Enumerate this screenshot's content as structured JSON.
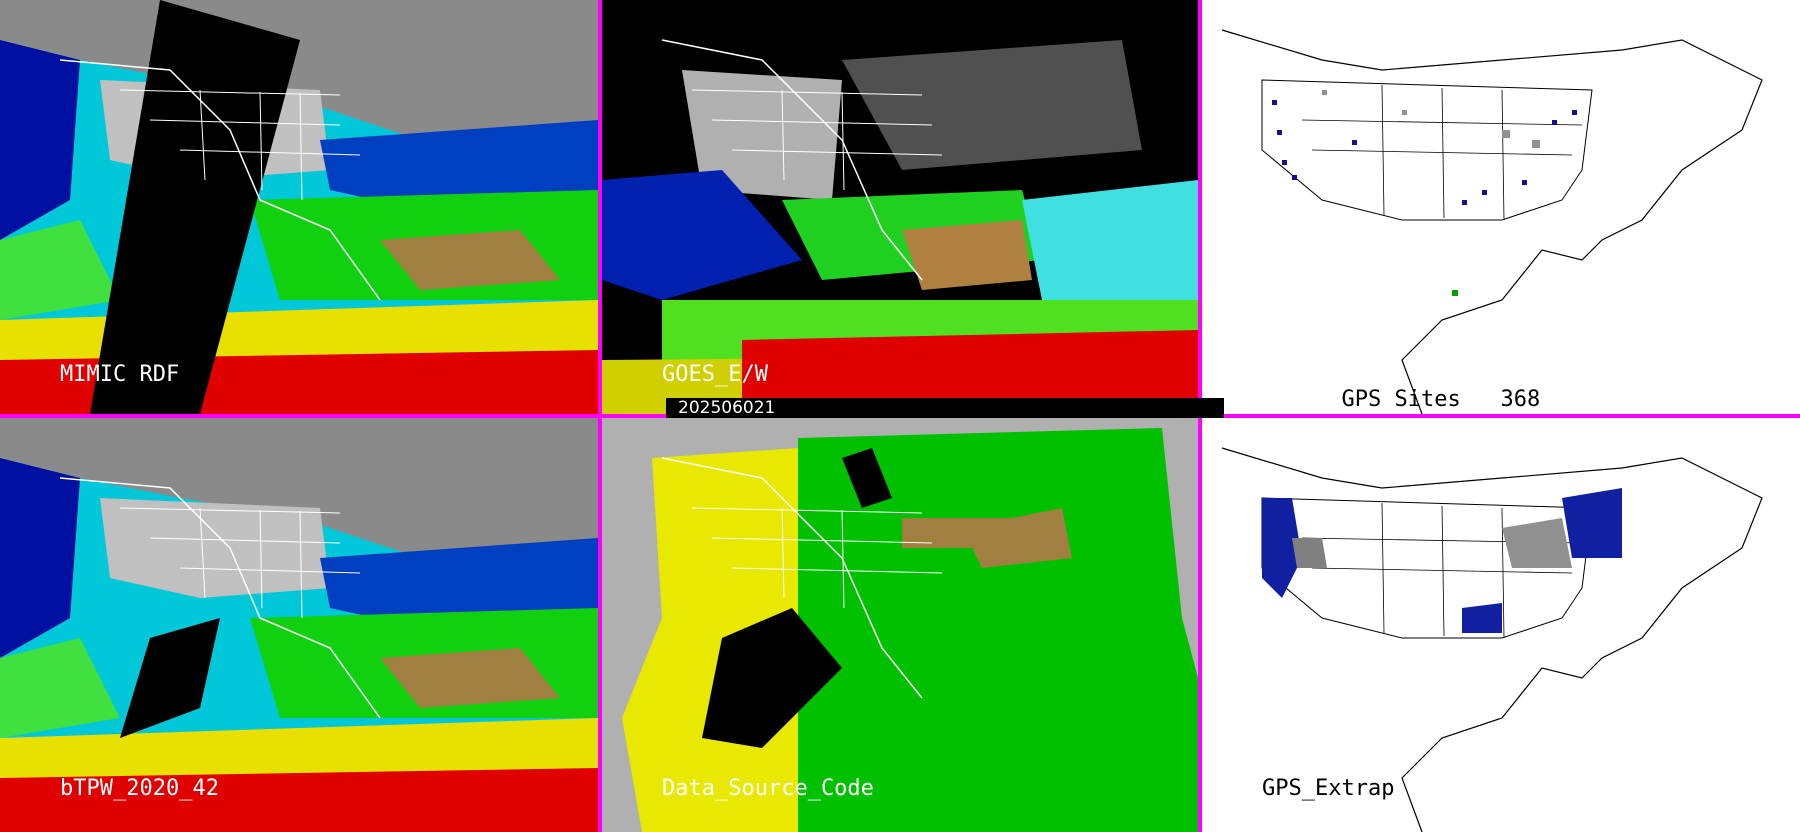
{
  "panels": [
    {
      "id": "mimic",
      "label": "MIMIC RDF"
    },
    {
      "id": "goes",
      "label": "GOES_E/W"
    },
    {
      "id": "gps-sites",
      "label": "GPS Sites",
      "count": "368"
    },
    {
      "id": "btpw",
      "label": "bTPW_2020_42"
    },
    {
      "id": "source",
      "label": "Data_Source_Code"
    },
    {
      "id": "gps-extrap",
      "label": "GPS_Extrap"
    }
  ],
  "timestamp": "202506021",
  "colors": {
    "divider": "#ff00ff",
    "ocean_moist": "#00e0e0",
    "dry": "#0000c0",
    "very_moist": "#f0e000",
    "extreme": "#e00000",
    "source_goes": "#00c000",
    "source_other": "#e8e800",
    "no_data": "#000000"
  }
}
